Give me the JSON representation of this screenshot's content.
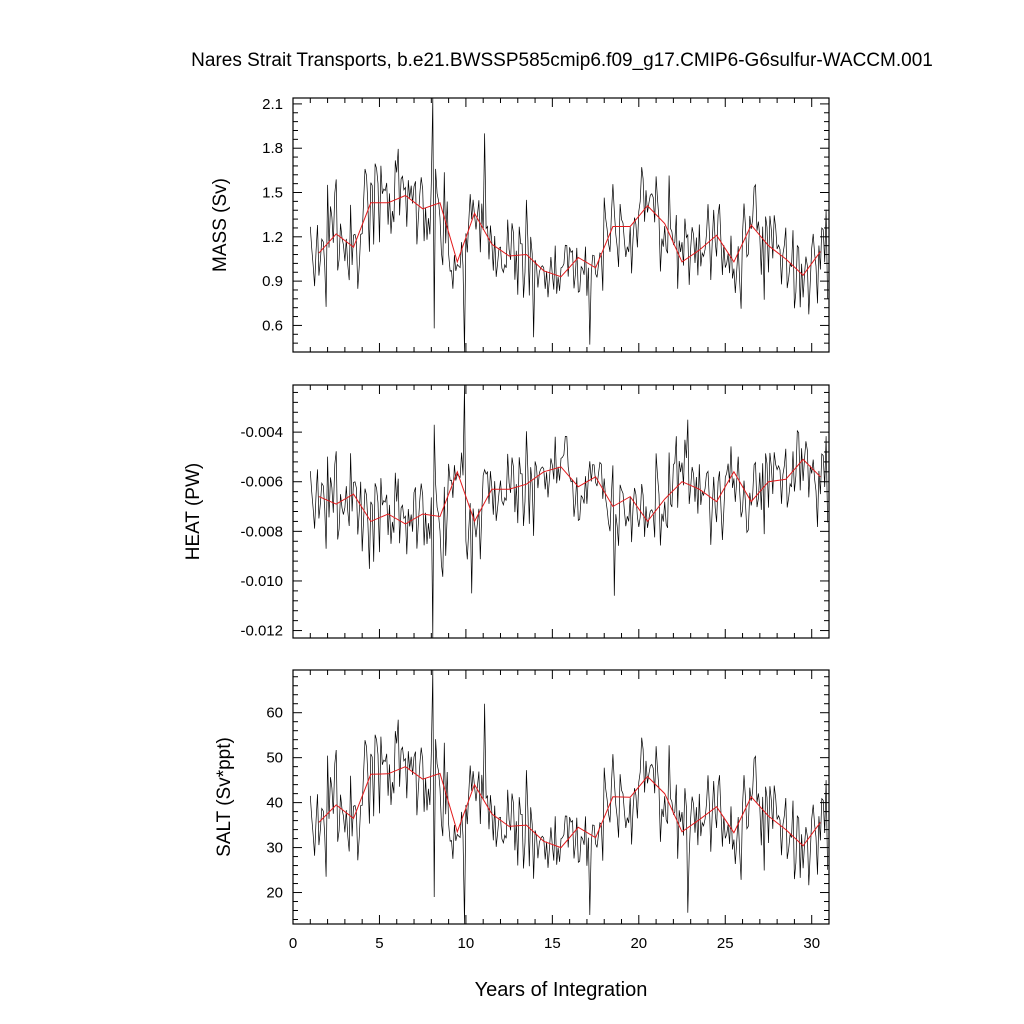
{
  "chart_data": {
    "type": "line",
    "title": "Nares Strait Transports, b.e21.BWSSP585cmip6.f09_g17.CMIP6-G6sulfur-WACCM.001",
    "xlabel": "Years of Integration",
    "xlim": [
      0,
      31
    ],
    "xticks": [
      0,
      5,
      10,
      15,
      20,
      25,
      30
    ],
    "xtick_labels": [
      "0",
      "5",
      "10",
      "15",
      "20",
      "25",
      "30"
    ],
    "colors": {
      "monthly": "#000000",
      "annual": "#e31a1c"
    },
    "panels": [
      {
        "ylabel": "MASS (Sv)",
        "ylim": [
          0.42,
          2.14
        ],
        "yticks": [
          0.6,
          0.9,
          1.2,
          1.5,
          1.8,
          2.1
        ],
        "ytick_labels": [
          "0.6",
          "0.9",
          "1.2",
          "1.5",
          "1.8",
          "2.1"
        ],
        "monthly_base": 1.2,
        "monthly_amp": 0.26,
        "monthly_extremes": [
          [
            8.1,
            2.14
          ],
          [
            8.2,
            0.58
          ],
          [
            9.95,
            0.42
          ],
          [
            11.1,
            1.9
          ],
          [
            17.2,
            0.47
          ],
          [
            13.9,
            0.52
          ]
        ],
        "annual": {
          "x": [
            1.5,
            2.5,
            3.5,
            4.5,
            5.5,
            6.5,
            7.5,
            8.5,
            9.5,
            10.5,
            11.5,
            12.5,
            13.5,
            14.5,
            15.5,
            16.5,
            17.5,
            18.5,
            19.5,
            20.5,
            21.5,
            22.5,
            23.5,
            24.5,
            25.5,
            26.5,
            27.5,
            28.5,
            29.5,
            30.5
          ],
          "y": [
            1.09,
            1.22,
            1.13,
            1.43,
            1.43,
            1.48,
            1.39,
            1.43,
            1.03,
            1.36,
            1.15,
            1.07,
            1.08,
            0.97,
            0.93,
            1.06,
            0.99,
            1.27,
            1.27,
            1.41,
            1.29,
            1.03,
            1.11,
            1.21,
            1.03,
            1.28,
            1.14,
            1.05,
            0.94,
            1.1
          ]
        }
      },
      {
        "ylabel": "HEAT (PW)",
        "ylim": [
          -0.0123,
          -0.0021
        ],
        "yticks": [
          -0.012,
          -0.01,
          -0.008,
          -0.006,
          -0.004
        ],
        "ytick_labels": [
          "-0.012",
          "-0.010",
          "-0.008",
          "-0.006",
          "-0.004"
        ],
        "monthly_base": -0.0066,
        "monthly_amp": 0.0015,
        "monthly_extremes": [
          [
            8.1,
            -0.0123
          ],
          [
            8.15,
            -0.0037
          ],
          [
            9.95,
            -0.0021
          ],
          [
            10.3,
            -0.0105
          ],
          [
            18.6,
            -0.0106
          ],
          [
            22.8,
            -0.0035
          ]
        ],
        "annual": {
          "x": [
            1.5,
            2.5,
            3.5,
            4.5,
            5.5,
            6.5,
            7.5,
            8.5,
            9.5,
            10.5,
            11.5,
            12.5,
            13.5,
            14.5,
            15.5,
            16.5,
            17.5,
            18.5,
            19.5,
            20.5,
            21.5,
            22.5,
            23.5,
            24.5,
            25.5,
            26.5,
            27.5,
            28.5,
            29.5,
            30.5
          ],
          "y": [
            -0.0066,
            -0.0069,
            -0.0065,
            -0.0076,
            -0.0073,
            -0.0077,
            -0.0073,
            -0.0074,
            -0.0056,
            -0.0076,
            -0.0063,
            -0.0063,
            -0.0061,
            -0.0056,
            -0.0054,
            -0.0062,
            -0.0058,
            -0.007,
            -0.0066,
            -0.0076,
            -0.0067,
            -0.006,
            -0.0063,
            -0.0068,
            -0.0056,
            -0.0068,
            -0.006,
            -0.0059,
            -0.0051,
            -0.0058
          ]
        }
      },
      {
        "ylabel": "SALT (Sv*ppt)",
        "ylim": [
          13,
          69.5
        ],
        "yticks": [
          20,
          30,
          40,
          50,
          60
        ],
        "ytick_labels": [
          "20",
          "30",
          "40",
          "50",
          "60"
        ],
        "monthly_base": 39,
        "monthly_amp": 8.6,
        "monthly_extremes": [
          [
            8.1,
            69.5
          ],
          [
            8.2,
            19
          ],
          [
            9.95,
            13
          ],
          [
            11.1,
            62
          ],
          [
            17.2,
            15
          ],
          [
            22.8,
            15.5
          ]
        ],
        "annual": {
          "x": [
            1.5,
            2.5,
            3.5,
            4.5,
            5.5,
            6.5,
            7.5,
            8.5,
            9.5,
            10.5,
            11.5,
            12.5,
            13.5,
            14.5,
            15.5,
            16.5,
            17.5,
            18.5,
            19.5,
            20.5,
            21.5,
            22.5,
            23.5,
            24.5,
            25.5,
            26.5,
            27.5,
            28.5,
            29.5,
            30.5
          ],
          "y": [
            35.6,
            39.5,
            36.5,
            46.3,
            46.4,
            48,
            45.2,
            46.5,
            33.5,
            44,
            37.5,
            34.7,
            35,
            31.4,
            30,
            34.5,
            32.2,
            41.3,
            41.2,
            45.8,
            42,
            33.5,
            36.2,
            39.1,
            33.3,
            41.3,
            37,
            34,
            30.4,
            35.6
          ]
        }
      }
    ]
  }
}
